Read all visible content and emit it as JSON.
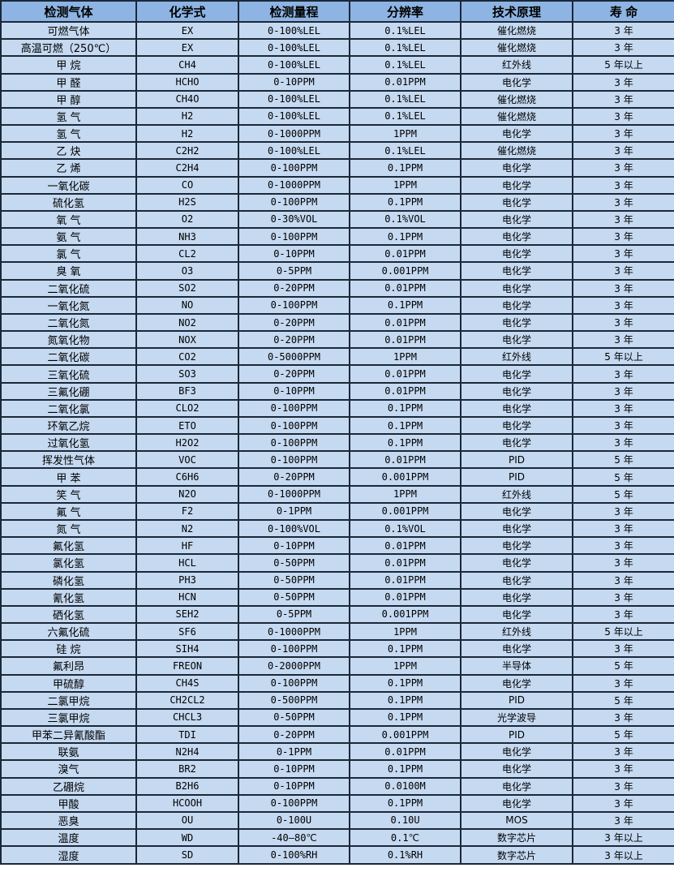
{
  "colors": {
    "header_bg": "#8db4e2",
    "row_bg": "#c5d9f1",
    "border": "#1b2838",
    "text": "#000000"
  },
  "table": {
    "headers": [
      "检测气体",
      "化学式",
      "检测量程",
      "分辨率",
      "技术原理",
      "寿 命"
    ],
    "rows": [
      [
        "可燃气体",
        "EX",
        "0-100%LEL",
        "0.1%LEL",
        "催化燃烧",
        "3 年"
      ],
      [
        "高温可燃（250℃）",
        "EX",
        "0-100%LEL",
        "0.1%LEL",
        "催化燃烧",
        "3 年"
      ],
      [
        "甲 烷",
        "CH4",
        "0-100%LEL",
        "0.1%LEL",
        "红外线",
        "5 年以上"
      ],
      [
        "甲 醛",
        "HCHO",
        "0-10PPM",
        "0.01PPM",
        "电化学",
        "3 年"
      ],
      [
        "甲 醇",
        "CH4O",
        "0-100%LEL",
        "0.1%LEL",
        "催化燃烧",
        "3 年"
      ],
      [
        "氢 气",
        "H2",
        "0-100%LEL",
        "0.1%LEL",
        "催化燃烧",
        "3 年"
      ],
      [
        "氢 气",
        "H2",
        "0-1000PPM",
        "1PPM",
        "电化学",
        "3 年"
      ],
      [
        "乙 炔",
        "C2H2",
        "0-100%LEL",
        "0.1%LEL",
        "催化燃烧",
        "3 年"
      ],
      [
        "乙 烯",
        "C2H4",
        "0-100PPM",
        "0.1PPM",
        "电化学",
        "3 年"
      ],
      [
        "一氧化碳",
        "CO",
        "0-1000PPM",
        "1PPM",
        "电化学",
        "3 年"
      ],
      [
        "硫化氢",
        "H2S",
        "0-100PPM",
        "0.1PPM",
        "电化学",
        "3 年"
      ],
      [
        "氧 气",
        "O2",
        "0-30%VOL",
        "0.1%VOL",
        "电化学",
        "3 年"
      ],
      [
        "氨 气",
        "NH3",
        "0-100PPM",
        "0.1PPM",
        "电化学",
        "3 年"
      ],
      [
        "氯 气",
        "CL2",
        "0-10PPM",
        "0.01PPM",
        "电化学",
        "3 年"
      ],
      [
        "臭 氧",
        "O3",
        "0-5PPM",
        "0.001PPM",
        "电化学",
        "3 年"
      ],
      [
        "二氧化硫",
        "SO2",
        "0-20PPM",
        "0.01PPM",
        "电化学",
        "3 年"
      ],
      [
        "一氧化氮",
        "NO",
        "0-100PPM",
        "0.1PPM",
        "电化学",
        "3 年"
      ],
      [
        "二氧化氮",
        "NO2",
        "0-20PPM",
        "0.01PPM",
        "电化学",
        "3 年"
      ],
      [
        "氮氧化物",
        "NOX",
        "0-20PPM",
        "0.01PPM",
        "电化学",
        "3 年"
      ],
      [
        "二氧化碳",
        "CO2",
        "0-5000PPM",
        "1PPM",
        "红外线",
        "5 年以上"
      ],
      [
        "三氧化硫",
        "SO3",
        "0-20PPM",
        "0.01PPM",
        "电化学",
        "3 年"
      ],
      [
        "三氟化硼",
        "BF3",
        "0-10PPM",
        "0.01PPM",
        "电化学",
        "3 年"
      ],
      [
        "二氧化氯",
        "CLO2",
        "0-100PPM",
        "0.1PPM",
        "电化学",
        "3 年"
      ],
      [
        "环氧乙烷",
        "ETO",
        "0-100PPM",
        "0.1PPM",
        "电化学",
        "3 年"
      ],
      [
        "过氧化氢",
        "H2O2",
        "0-100PPM",
        "0.1PPM",
        "电化学",
        "3 年"
      ],
      [
        "挥发性气体",
        "VOC",
        "0-100PPM",
        "0.01PPM",
        "PID",
        "5 年"
      ],
      [
        "甲 苯",
        "C6H6",
        "0-20PPM",
        "0.001PPM",
        "PID",
        "5 年"
      ],
      [
        "笑 气",
        "N2O",
        "0-1000PPM",
        "1PPM",
        "红外线",
        "5 年"
      ],
      [
        "氟 气",
        "F2",
        "0-1PPM",
        "0.001PPM",
        "电化学",
        "3 年"
      ],
      [
        "氮 气",
        "N2",
        "0-100%VOL",
        "0.1%VOL",
        "电化学",
        "3 年"
      ],
      [
        "氟化氢",
        "HF",
        "0-10PPM",
        "0.01PPM",
        "电化学",
        "3 年"
      ],
      [
        "氯化氢",
        "HCL",
        "0-50PPM",
        "0.01PPM",
        "电化学",
        "3 年"
      ],
      [
        "磷化氢",
        "PH3",
        "0-50PPM",
        "0.01PPM",
        "电化学",
        "3 年"
      ],
      [
        "氰化氢",
        "HCN",
        "0-50PPM",
        "0.01PPM",
        "电化学",
        "3 年"
      ],
      [
        "硒化氢",
        "SEH2",
        "0-5PPM",
        "0.001PPM",
        "电化学",
        "3 年"
      ],
      [
        "六氟化硫",
        "SF6",
        "0-1000PPM",
        "1PPM",
        "红外线",
        "5 年以上"
      ],
      [
        "硅 烷",
        "SIH4",
        "0-100PPM",
        "0.1PPM",
        "电化学",
        "3 年"
      ],
      [
        "氟利昂",
        "FREON",
        "0-2000PPM",
        "1PPM",
        "半导体",
        "5 年"
      ],
      [
        "甲硫醇",
        "CH4S",
        "0-100PPM",
        "0.1PPM",
        "电化学",
        "3 年"
      ],
      [
        "二氯甲烷",
        "CH2CL2",
        "0-500PPM",
        "0.1PPM",
        "PID",
        "5 年"
      ],
      [
        "三氯甲烷",
        "CHCL3",
        "0-50PPM",
        "0.1PPM",
        "光学波导",
        "3 年"
      ],
      [
        "甲苯二异氰酸酯",
        "TDI",
        "0-20PPM",
        "0.001PPM",
        "PID",
        "5 年"
      ],
      [
        "联氨",
        "N2H4",
        "0-1PPM",
        "0.01PPM",
        "电化学",
        "3 年"
      ],
      [
        "溴气",
        "BR2",
        "0-10PPM",
        "0.1PPM",
        "电化学",
        "3 年"
      ],
      [
        "乙硼烷",
        "B2H6",
        "0-10PPM",
        "0.0100M",
        "电化学",
        "3 年"
      ],
      [
        "甲酸",
        "HCOOH",
        "0-100PPM",
        "0.1PPM",
        "电化学",
        "3 年"
      ],
      [
        "恶臭",
        "OU",
        "0-100U",
        "0.10U",
        "MOS",
        "3 年"
      ],
      [
        "温度",
        "WD",
        "-40—80℃",
        "0.1℃",
        "数字芯片",
        "3 年以上"
      ],
      [
        "湿度",
        "SD",
        "0-100%RH",
        "0.1%RH",
        "数字芯片",
        "3 年以上"
      ]
    ]
  }
}
